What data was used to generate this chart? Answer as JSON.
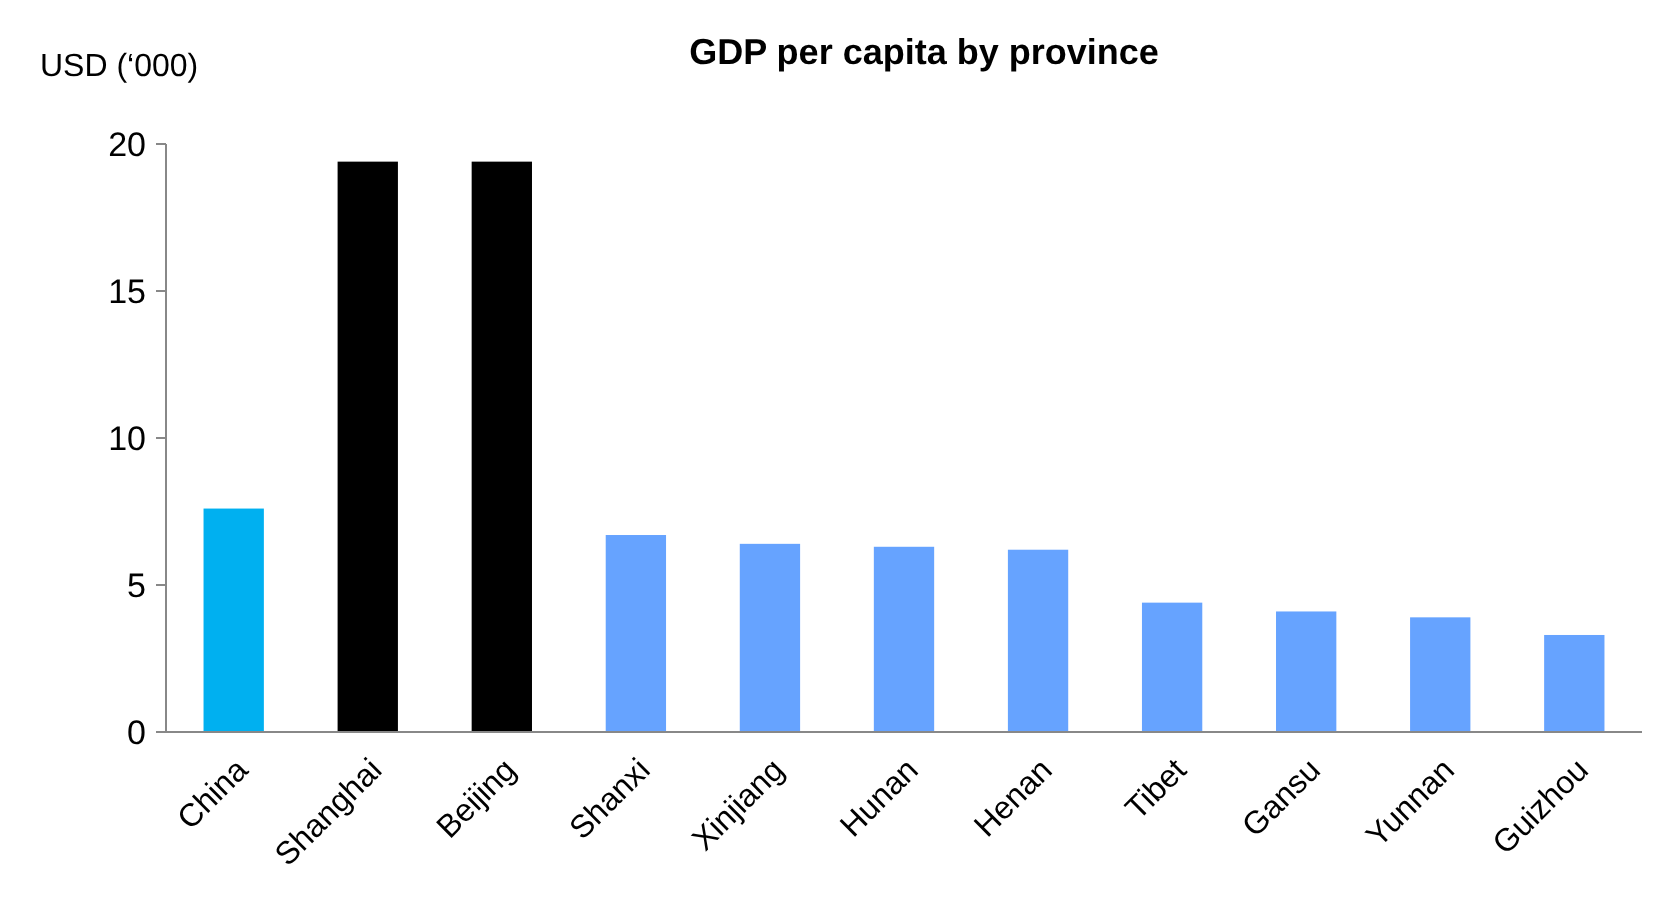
{
  "chart_data": {
    "type": "bar",
    "title": "GDP per capita by province",
    "ylabel": "USD (‘000)",
    "categories": [
      "China",
      "Shanghai",
      "Beijing",
      "Shanxi",
      "Xinjiang",
      "Hunan",
      "Henan",
      "Tibet",
      "Gansu",
      "Yunnan",
      "Guizhou"
    ],
    "values": [
      7.6,
      19.4,
      19.4,
      6.7,
      6.4,
      6.3,
      6.2,
      4.4,
      4.1,
      3.9,
      3.3
    ],
    "colors": [
      "#00b0f0",
      "#000000",
      "#000000",
      "#66a3ff",
      "#66a3ff",
      "#66a3ff",
      "#66a3ff",
      "#66a3ff",
      "#66a3ff",
      "#66a3ff",
      "#66a3ff"
    ],
    "ylim": [
      0,
      20
    ],
    "yticks": [
      0,
      5,
      10,
      15,
      20
    ],
    "grid": false
  }
}
